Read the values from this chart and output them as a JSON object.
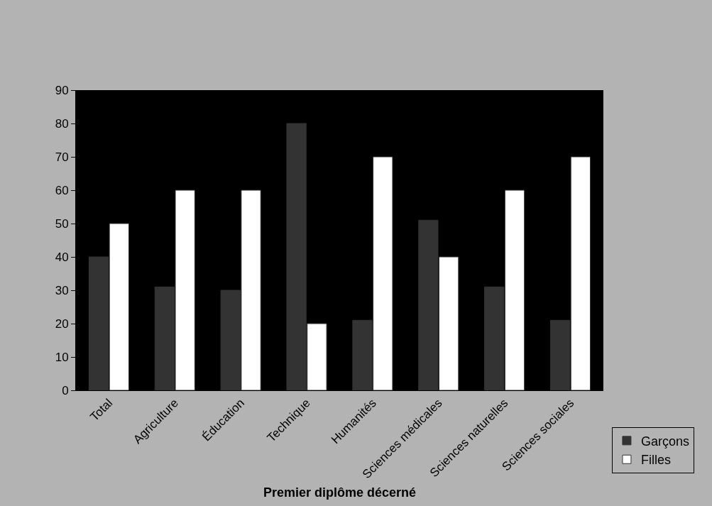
{
  "chart_data": {
    "type": "bar",
    "xlabel": "Premier diplôme décerné",
    "categories": [
      "Total",
      "Agriculture",
      "Éducation",
      "Technique",
      "Humanités",
      "Sciences médicales",
      "Sciences naturelles",
      "Sciences sociales"
    ],
    "series": [
      {
        "name": "Garçons",
        "color": "#333333",
        "values": [
          40,
          31,
          30,
          80,
          21,
          51,
          31,
          21
        ]
      },
      {
        "name": "Filles",
        "color": "#ffffff",
        "values": [
          50,
          60,
          60,
          20,
          70,
          40,
          60,
          70
        ]
      }
    ],
    "ylim": [
      0,
      90
    ],
    "yticks": [
      0,
      10,
      20,
      30,
      40,
      50,
      60,
      70,
      80,
      90
    ],
    "grid": false,
    "legend": "bottom right"
  }
}
